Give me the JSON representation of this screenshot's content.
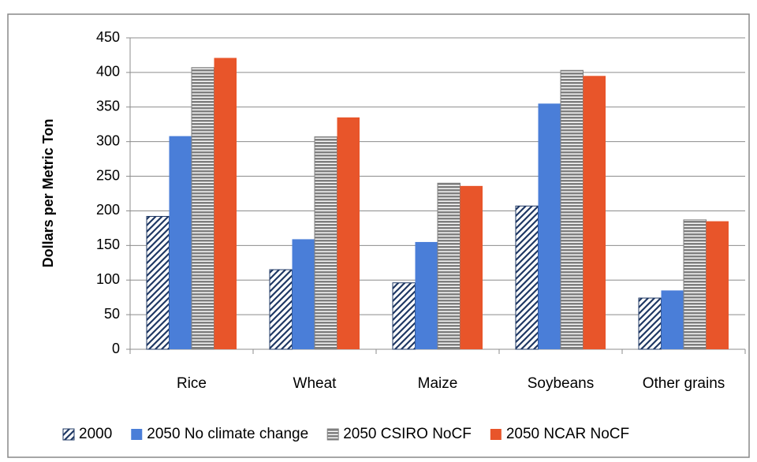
{
  "chart_data": {
    "type": "bar",
    "y_label": "Dollars per Metric Ton",
    "categories": [
      "Rice",
      "Wheat",
      "Maize",
      "Soybeans",
      "Other grains"
    ],
    "series": [
      {
        "name": "2000",
        "color": "#1f3864",
        "pattern": "diagonal",
        "values": [
          192,
          115,
          96,
          207,
          74
        ]
      },
      {
        "name": "2050 No climate change",
        "color": "#4a7ed8",
        "values": [
          308,
          159,
          155,
          355,
          85
        ]
      },
      {
        "name": "2050 CSIRO NoCF",
        "color": "#7f7f7f",
        "pattern": "horizontal",
        "values": [
          407,
          307,
          240,
          403,
          187
        ]
      },
      {
        "name": "2050 NCAR NoCF",
        "color": "#e8552a",
        "values": [
          421,
          335,
          236,
          395,
          185
        ]
      }
    ],
    "ylim": [
      0,
      450
    ],
    "yticks": [
      0,
      50,
      100,
      150,
      200,
      250,
      300,
      350,
      400,
      450
    ],
    "grid": true,
    "legend": "bottom"
  }
}
